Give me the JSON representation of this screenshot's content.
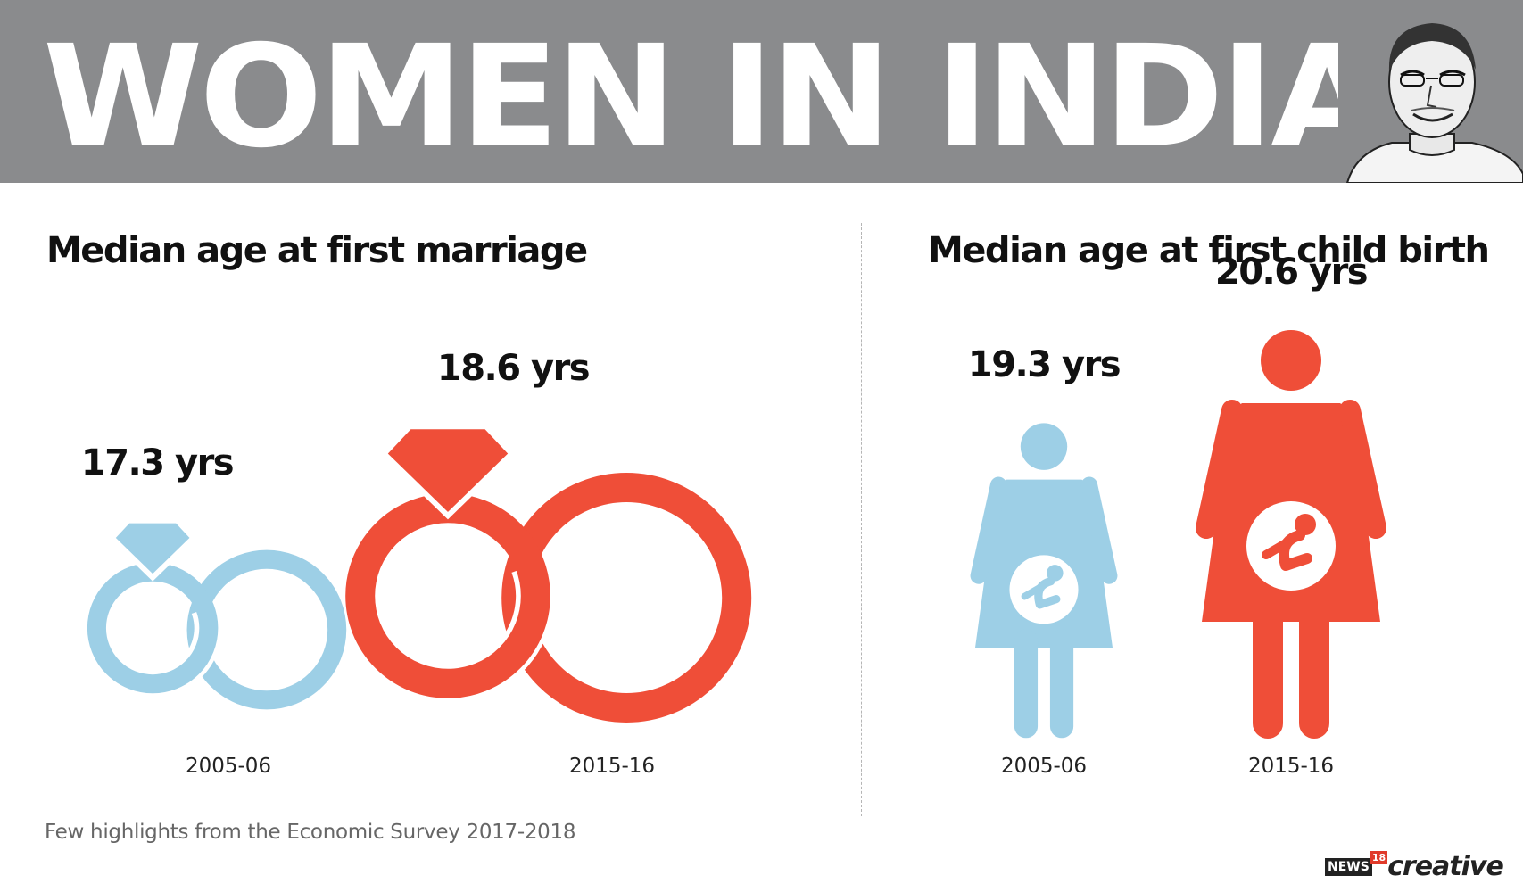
{
  "banner": {
    "title": "WOMEN IN INDIA"
  },
  "portrait": {
    "icon": "portrait-sketch-icon"
  },
  "colors": {
    "banner_bg": "#8a8b8d",
    "series_2005": "#9dcfe6",
    "series_2015": "#ef4e38"
  },
  "chart_data": [
    {
      "type": "pictograph",
      "title": "Median age at first marriage",
      "icon": "wedding-rings-icon",
      "categories": [
        "2005-06",
        "2015-16"
      ],
      "values": [
        17.3,
        18.6
      ],
      "unit": "yrs",
      "value_labels": [
        "17.3 yrs",
        "18.6 yrs"
      ]
    },
    {
      "type": "pictograph",
      "title": "Median age at first child birth",
      "icon": "pregnant-woman-icon",
      "categories": [
        "2005-06",
        "2015-16"
      ],
      "values": [
        19.3,
        20.6
      ],
      "unit": "yrs",
      "value_labels": [
        "19.3 yrs",
        "20.6 yrs"
      ]
    }
  ],
  "footnote": "Few highlights from the Economic Survey 2017-2018",
  "brand": {
    "news": "NEWS",
    "number": "18",
    "creative": "creative"
  }
}
